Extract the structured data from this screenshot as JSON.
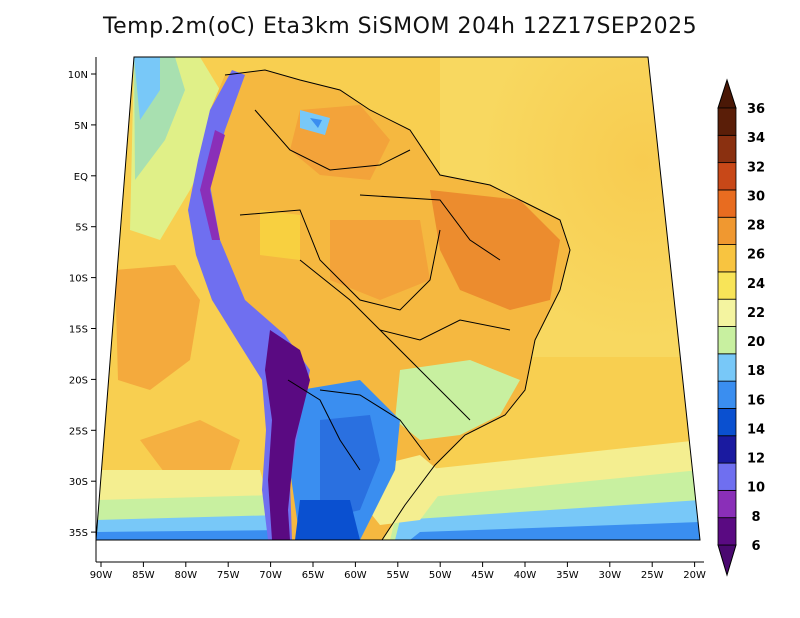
{
  "title": "Temp.2m(oC) Eta3km SiSMOM 204h 12Z17SEP2025",
  "map": {
    "lat_labels": [
      "10N",
      "5N",
      "EQ",
      "5S",
      "10S",
      "15S",
      "20S",
      "25S",
      "30S",
      "35S"
    ],
    "lon_labels": [
      "90W",
      "85W",
      "80W",
      "75W",
      "70W",
      "65W",
      "60W",
      "55W",
      "50W",
      "45W",
      "40W",
      "35W",
      "30W",
      "25W",
      "20W"
    ]
  },
  "colorbar": {
    "labels": [
      "6",
      "8",
      "10",
      "12",
      "14",
      "16",
      "18",
      "20",
      "22",
      "24",
      "26",
      "28",
      "30",
      "32",
      "34",
      "36"
    ],
    "colors": [
      "#5a0a82",
      "#8a2fb8",
      "#6f6ff0",
      "#1a1aa0",
      "#0a50d0",
      "#3a8ef0",
      "#78c8f8",
      "#c8f0a0",
      "#f4f4a0",
      "#f8e458",
      "#f8c440",
      "#f09830",
      "#e86c20",
      "#c84818",
      "#8a3010",
      "#5a1e08"
    ],
    "arrow_bottom_color": "#4a0870",
    "arrow_top_color": "#4a1806"
  }
}
